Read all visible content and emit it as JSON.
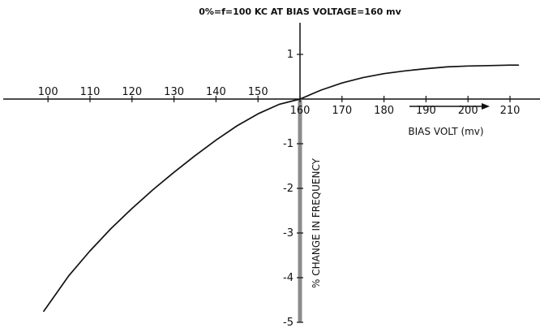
{
  "chart_data": {
    "type": "line",
    "title": "0%=f=100 KC AT BIAS VOLTAGE=160 mv",
    "xlabel": "BIAS VOLT (mv)",
    "ylabel": "% CHANGE IN FREQUENCY",
    "xlim": [
      95,
      212
    ],
    "ylim": [
      -5,
      1.8
    ],
    "x_ticks": [
      100,
      110,
      120,
      130,
      140,
      150,
      160,
      170,
      180,
      190,
      200,
      210
    ],
    "y_ticks": [
      1,
      -1,
      -2,
      -3,
      -4,
      -5
    ],
    "grid": false,
    "series": [
      {
        "x": [
          99,
          105,
          110,
          115,
          120,
          125,
          130,
          135,
          140,
          145,
          150,
          155,
          160,
          165,
          170,
          175,
          180,
          185,
          190,
          195,
          200,
          205,
          210,
          212
        ],
        "y": [
          -4.75,
          -3.95,
          -3.4,
          -2.9,
          -2.45,
          -2.03,
          -1.64,
          -1.27,
          -0.92,
          -0.6,
          -0.33,
          -0.12,
          0.0,
          0.2,
          0.36,
          0.48,
          0.57,
          0.63,
          0.68,
          0.72,
          0.74,
          0.75,
          0.76,
          0.76
        ]
      }
    ]
  }
}
